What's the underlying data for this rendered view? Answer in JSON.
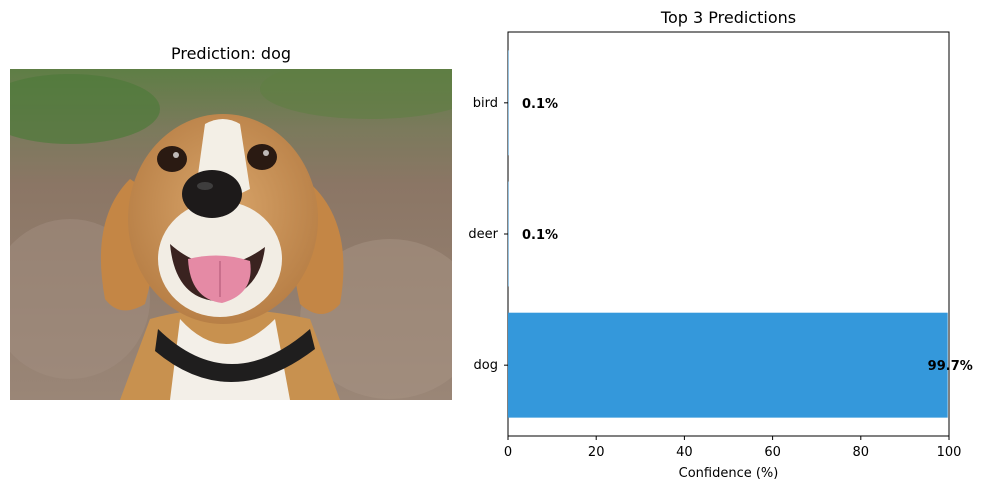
{
  "left_panel": {
    "title": "Prediction: dog"
  },
  "chart_data": {
    "type": "bar",
    "orientation": "horizontal",
    "title": "Top 3 Predictions",
    "xlabel": "Confidence (%)",
    "ylabel": "",
    "categories": [
      "dog",
      "deer",
      "bird"
    ],
    "values": [
      99.7,
      0.1,
      0.1
    ],
    "data_labels": [
      "99.7%",
      "0.1%",
      "0.1%"
    ],
    "xlim": [
      0,
      100
    ],
    "xticks": [
      0,
      20,
      40,
      60,
      80,
      100
    ],
    "bar_color": "#3498db",
    "grid": false
  }
}
